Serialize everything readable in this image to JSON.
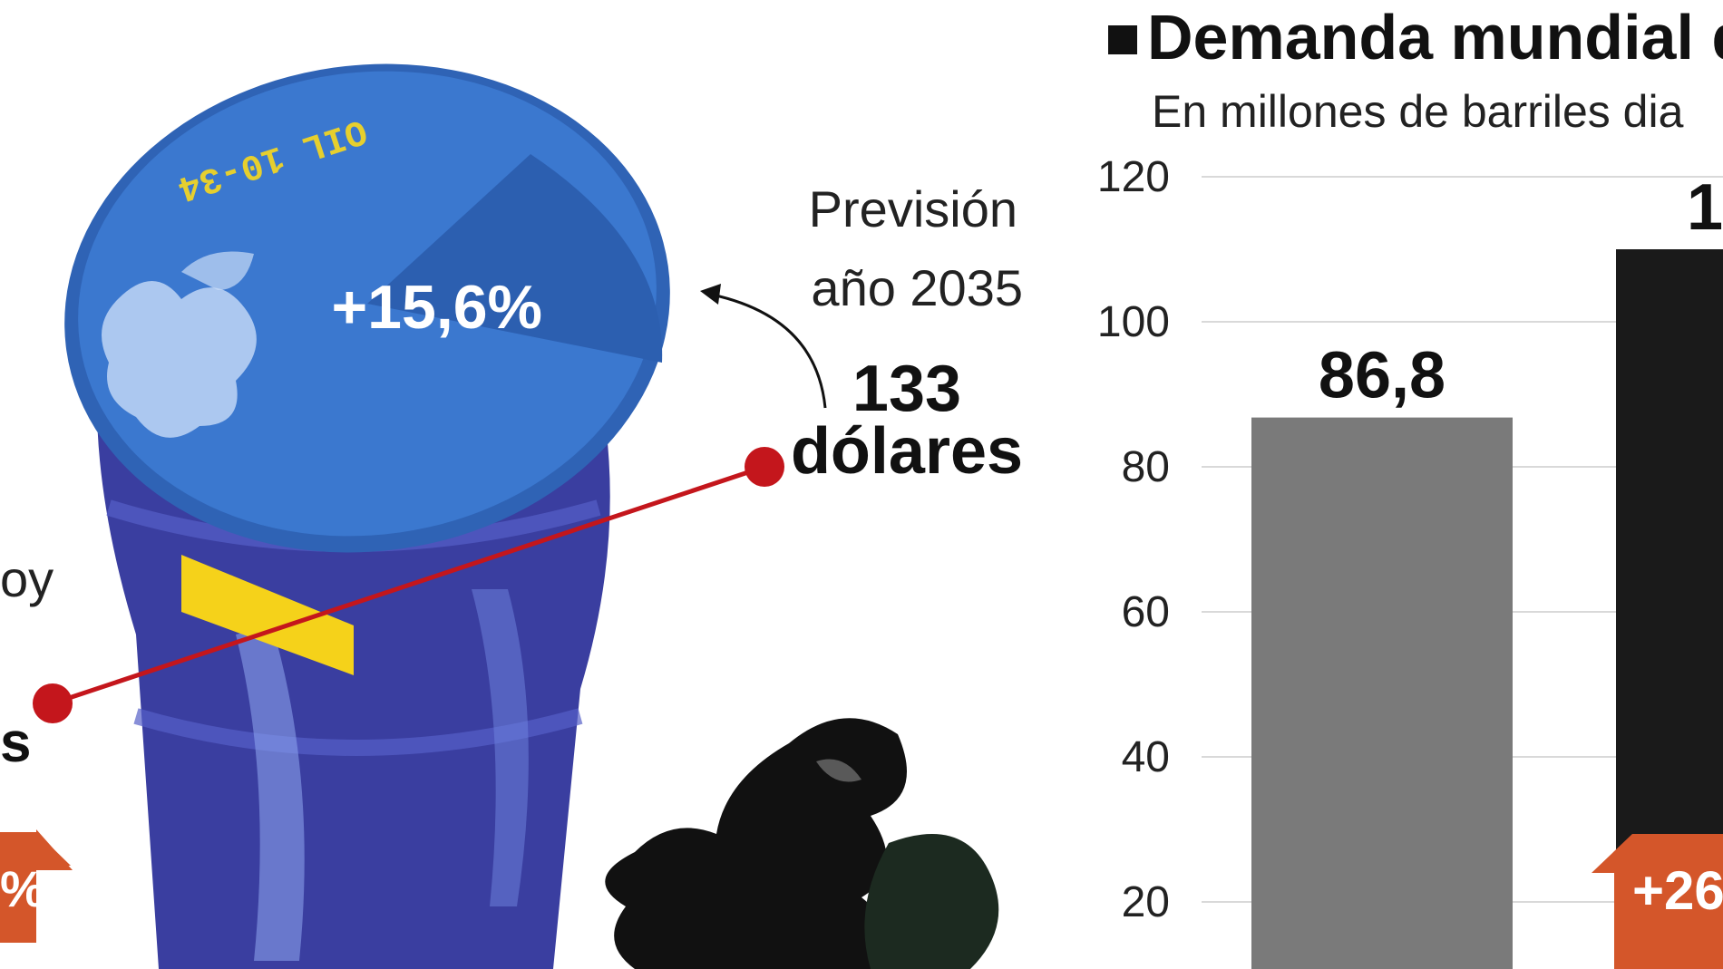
{
  "left_panel": {
    "barrel_stencil": "OIL 10-34",
    "increase_pct": "+15,6%",
    "forecast_label_line1": "Previsión",
    "forecast_label_line2": "año 2035",
    "forecast_value": "133",
    "forecast_unit": "dólares",
    "cut_today_fragment": "oy",
    "cut_unit_fragment": "s",
    "cut_arrow_fragment": "%"
  },
  "right_panel": {
    "title": "Demanda mundial d",
    "subtitle": "En millones de barriles dia"
  },
  "chart_data": {
    "type": "bar",
    "ylim": [
      0,
      120
    ],
    "yticks": [
      "120",
      "100",
      "80",
      "60",
      "40",
      "20"
    ],
    "ytick_values": [
      120,
      100,
      80,
      60,
      40,
      20
    ],
    "grid": true,
    "bars": [
      {
        "value": 86.8,
        "label": "86,8",
        "color": "#7a7a7a"
      },
      {
        "value": 110,
        "label": "1",
        "color": "#1a1a1a"
      }
    ],
    "arrow_badge": "+26",
    "arrow_color": "#d4562a"
  },
  "colors": {
    "barrel_blue": "#3b78cf",
    "barrel_dark": "#3a3ea0",
    "barrel_yellow": "#f5d21a",
    "line_red": "#c4161c",
    "arrow_orange": "#d4562a"
  }
}
